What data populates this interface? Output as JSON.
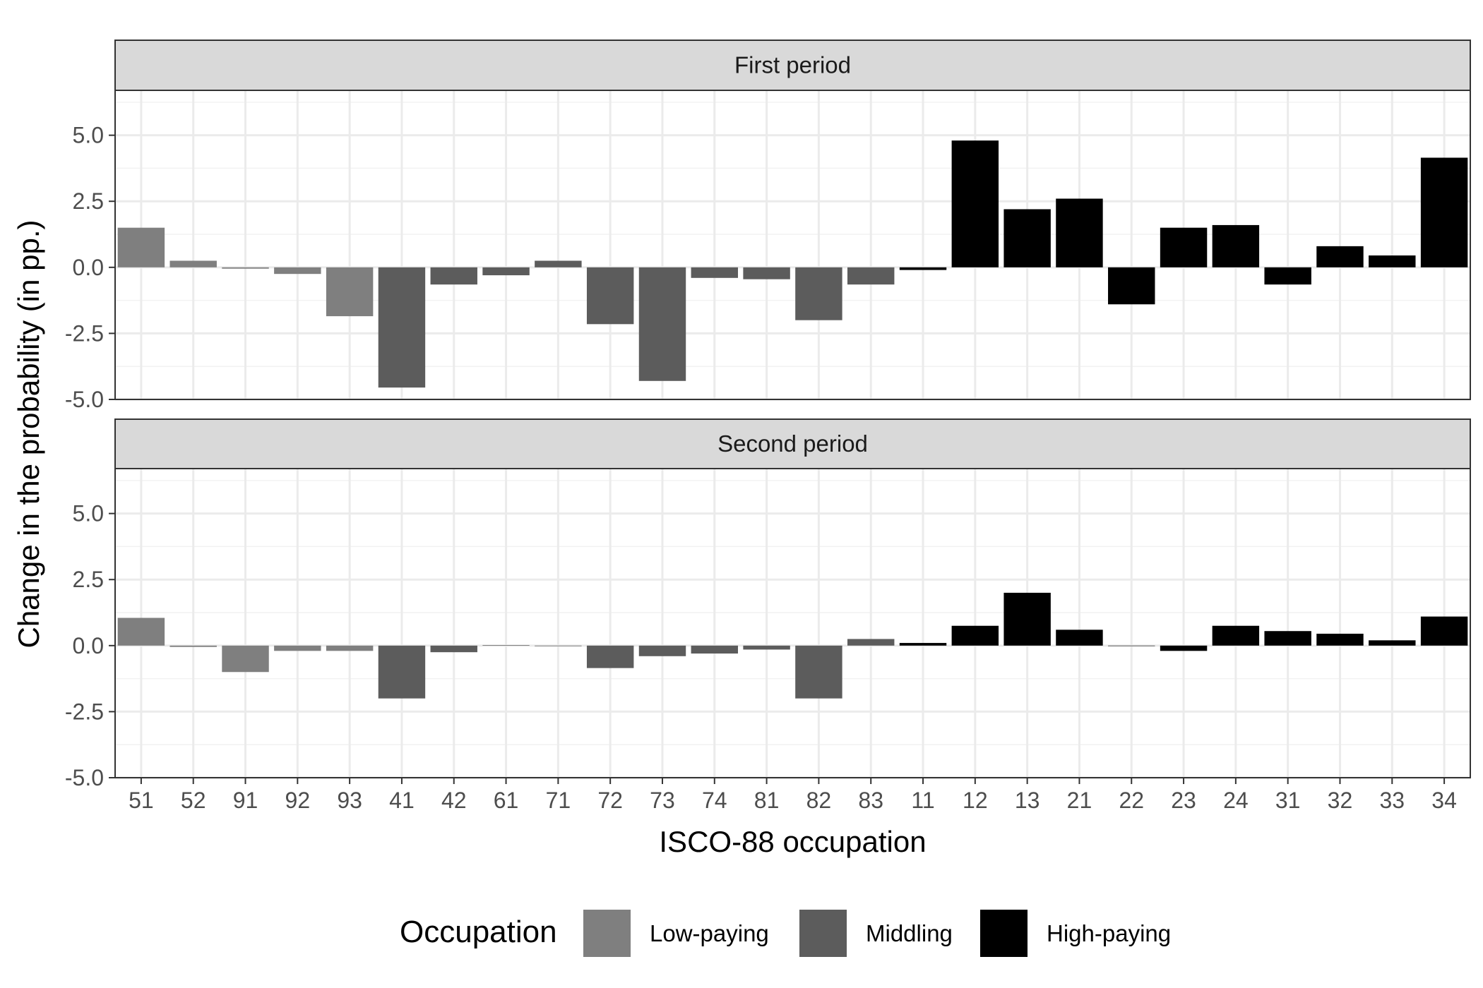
{
  "chart_data": {
    "type": "bar",
    "xlabel": "ISCO-88 occupation",
    "ylabel": "Change in the probability (in pp.)",
    "ylim": [
      -5,
      6.7
    ],
    "y_ticks": [
      "-5.0",
      "-2.5",
      "0.0",
      "2.5",
      "5.0"
    ],
    "y_tick_values": [
      -5,
      -2.5,
      0,
      2.5,
      5
    ],
    "grid": true,
    "legend_position": "bottom",
    "categories": [
      "51",
      "52",
      "91",
      "92",
      "93",
      "41",
      "42",
      "61",
      "71",
      "72",
      "73",
      "74",
      "81",
      "82",
      "83",
      "11",
      "12",
      "13",
      "21",
      "22",
      "23",
      "24",
      "31",
      "32",
      "33",
      "34"
    ],
    "groups": [
      "Low-paying",
      "Low-paying",
      "Low-paying",
      "Low-paying",
      "Low-paying",
      "Middling",
      "Middling",
      "Middling",
      "Middling",
      "Middling",
      "Middling",
      "Middling",
      "Middling",
      "Middling",
      "Middling",
      "High-paying",
      "High-paying",
      "High-paying",
      "High-paying",
      "High-paying",
      "High-paying",
      "High-paying",
      "High-paying",
      "High-paying",
      "High-paying",
      "High-paying"
    ],
    "group_colors": {
      "Low-paying": "#7f7f7f",
      "Middling": "#5c5c5c",
      "High-paying": "#000000"
    },
    "panels": [
      {
        "name": "First period",
        "values": [
          1.5,
          0.25,
          -0.05,
          -0.25,
          -1.85,
          -4.55,
          -0.65,
          -0.3,
          0.25,
          -2.15,
          -4.3,
          -0.4,
          -0.45,
          -2.0,
          -0.65,
          -0.1,
          4.8,
          2.2,
          2.6,
          -1.4,
          1.5,
          1.6,
          -0.65,
          0.8,
          0.45,
          4.15
        ]
      },
      {
        "name": "Second period",
        "values": [
          1.05,
          -0.05,
          -1.0,
          -0.2,
          -0.2,
          -2.0,
          -0.25,
          0.02,
          -0.02,
          -0.85,
          -0.4,
          -0.3,
          -0.15,
          -2.0,
          0.25,
          0.1,
          0.75,
          2.0,
          0.6,
          0.0,
          -0.2,
          0.75,
          0.55,
          0.45,
          0.2,
          1.1
        ]
      }
    ]
  },
  "legend": {
    "title": "Occupation",
    "items": [
      {
        "label": "Low-paying",
        "color": "#7f7f7f"
      },
      {
        "label": "Middling",
        "color": "#5c5c5c"
      },
      {
        "label": "High-paying",
        "color": "#000000"
      }
    ]
  }
}
